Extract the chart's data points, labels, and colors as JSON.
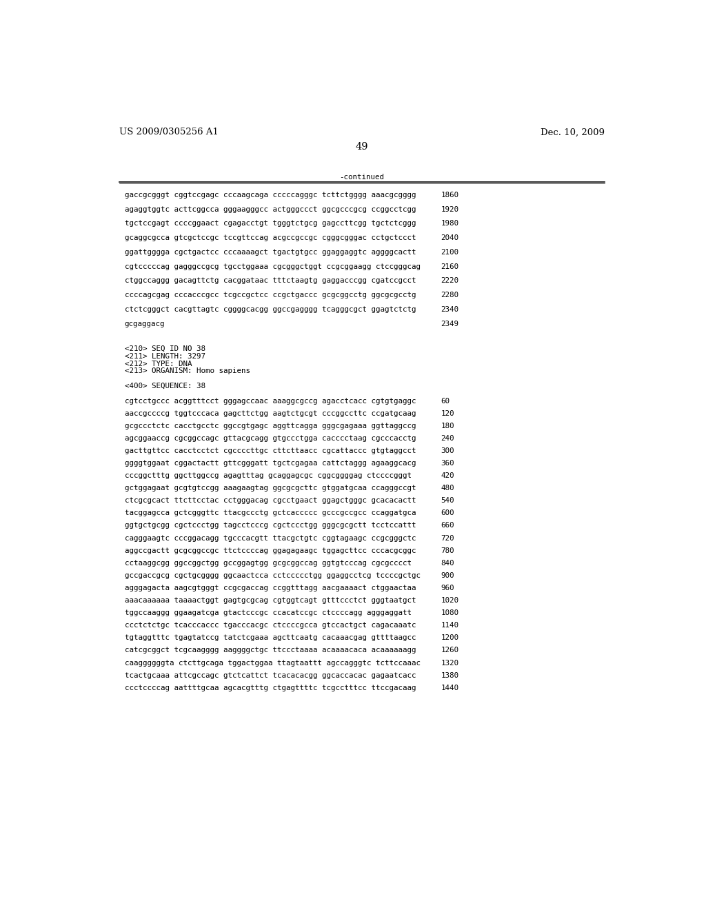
{
  "header_left": "US 2009/0305256 A1",
  "header_right": "Dec. 10, 2009",
  "page_number": "49",
  "continued_label": "-continued",
  "background_color": "#ffffff",
  "text_color": "#000000",
  "font_size_header": 9.5,
  "font_size_body": 7.8,
  "font_size_page": 10.5,
  "sequence_lines_top": [
    [
      "gaccgcgggt cggtccgagc cccaagcaga cccccagggc tcttctgggg aaacgcgggg",
      "1860"
    ],
    [
      "agaggtggtc acttcggcca gggaagggcc actgggccct ggcgcccgcg ccggcctcgg",
      "1920"
    ],
    [
      "tgctccgagt ccccggaact cgagacctgt tgggtctgcg gagccttcgg tgctctcggg",
      "1980"
    ],
    [
      "gcaggcgcca gtcgctccgc tccgttccag acgccgccgc cgggcgggac cctgctccct",
      "2040"
    ],
    [
      "ggattgggga cgctgactcc cccaaaagct tgactgtgcc ggaggaggtc aggggcactt",
      "2100"
    ],
    [
      "cgtcccccag gagggccgcg tgcctggaaa cgcgggctggt ccgcggaagg ctccgggcag",
      "2160"
    ],
    [
      "ctggccaggg gacagttctg cacggataac tttctaagtg gaggacccgg cgatccgcct",
      "2220"
    ],
    [
      "ccccagcgag cccacccgcc tcgccgctcc ccgctgaccc gcgcggcctg ggcgcgcctg",
      "2280"
    ],
    [
      "ctctcgggct cacgttagtc cggggcacgg ggccgagggg tcagggcgct ggagtctctg",
      "2340"
    ],
    [
      "gcgaggacg",
      "2349"
    ]
  ],
  "meta_lines": [
    "<210> SEQ ID NO 38",
    "<211> LENGTH: 3297",
    "<212> TYPE: DNA",
    "<213> ORGANISM: Homo sapiens",
    "",
    "<400> SEQUENCE: 38"
  ],
  "sequence_lines_bottom": [
    [
      "cgtcctgccc acggtttcct gggagccaac aaaggcgccg agacctcacc cgtgtgaggc",
      "60"
    ],
    [
      "aaccgccccg tggtcccaca gagcttctgg aagtctgcgt cccggccttc ccgatgcaag",
      "120"
    ],
    [
      "gcgccctctc cacctgcctc ggccgtgagc aggttcagga gggcgagaaa ggttaggccg",
      "180"
    ],
    [
      "agcggaaccg cgcggccagc gttacgcagg gtgccctgga cacccctaag cgcccacctg",
      "240"
    ],
    [
      "gacttgttcc cacctcctct cgccccttgc cttcttaacc cgcattaccc gtgtaggcct",
      "300"
    ],
    [
      "ggggtggaat cggactactt gttcgggatt tgctcgagaa cattctaggg agaaggcacg",
      "360"
    ],
    [
      "cccggctttg ggcttggccg agagtttag gcaggagcgc cggcggggag ctccccgggt",
      "420"
    ],
    [
      "gctggagaat gcgtgtccgg aaagaagtag ggcgcgcttc gtggatgcaa ccagggccgt",
      "480"
    ],
    [
      "ctcgcgcact ttcttcctac cctgggacag cgcctgaact ggagctgggc gcacacactt",
      "540"
    ],
    [
      "tacggagcca gctcgggttc ttacgccctg gctcaccccc gcccgccgcc ccaggatgca",
      "600"
    ],
    [
      "ggtgctgcgg cgctccctgg tagcctcccg cgctccctgg gggcgcgctt tcctccattt",
      "660"
    ],
    [
      "cagggaagtc cccggacagg tgcccacgtt ttacgctgtc cggtagaagc ccgcgggctc",
      "720"
    ],
    [
      "aggccgactt gcgcggccgc ttctccccag ggagagaagc tggagcttcc cccacgcggc",
      "780"
    ],
    [
      "cctaaggcgg ggccggctgg gccggagtgg gcgcggccag ggtgtcccag cgcgcccct",
      "840"
    ],
    [
      "gccgaccgcg cgctgcgggg ggcaactcca cctccccctgg ggaggcctcg tccccgctgc",
      "900"
    ],
    [
      "agggagacta aagcgtgggt ccgcgaccag ccggtttagg aacgaaaact ctggaactaa",
      "960"
    ],
    [
      "aaacaaaaaa taaaactggt gagtgcgcag cgtggtcagt gtttccctct gggtaatgct",
      "1020"
    ],
    [
      "tggccaaggg ggaagatcga gtactcccgc ccacatccgc ctccccagg agggaggatt",
      "1080"
    ],
    [
      "ccctctctgc tcacccaccc tgacccacgc ctccccgcca gtccactgct cagacaaatc",
      "1140"
    ],
    [
      "tgtaggtttc tgagtatccg tatctcgaaa agcttcaatg cacaaacgag gttttaagcc",
      "1200"
    ],
    [
      "catcgcggct tcgcaagggg aaggggctgc ttccctaaaa acaaaacaca acaaaaaagg",
      "1260"
    ],
    [
      "caaggggggta ctcttgcaga tggactggaa ttagtaattt agccagggtc tcttccaaac",
      "1320"
    ],
    [
      "tcactgcaaa attcgccagc gtctcattct tcacacacgg ggcaccacac gagaatcacc",
      "1380"
    ],
    [
      "ccctccccag aattttgcaa agcacgtttg ctgagttttc tcgcctttcc ttccgacaag",
      "1440"
    ]
  ]
}
